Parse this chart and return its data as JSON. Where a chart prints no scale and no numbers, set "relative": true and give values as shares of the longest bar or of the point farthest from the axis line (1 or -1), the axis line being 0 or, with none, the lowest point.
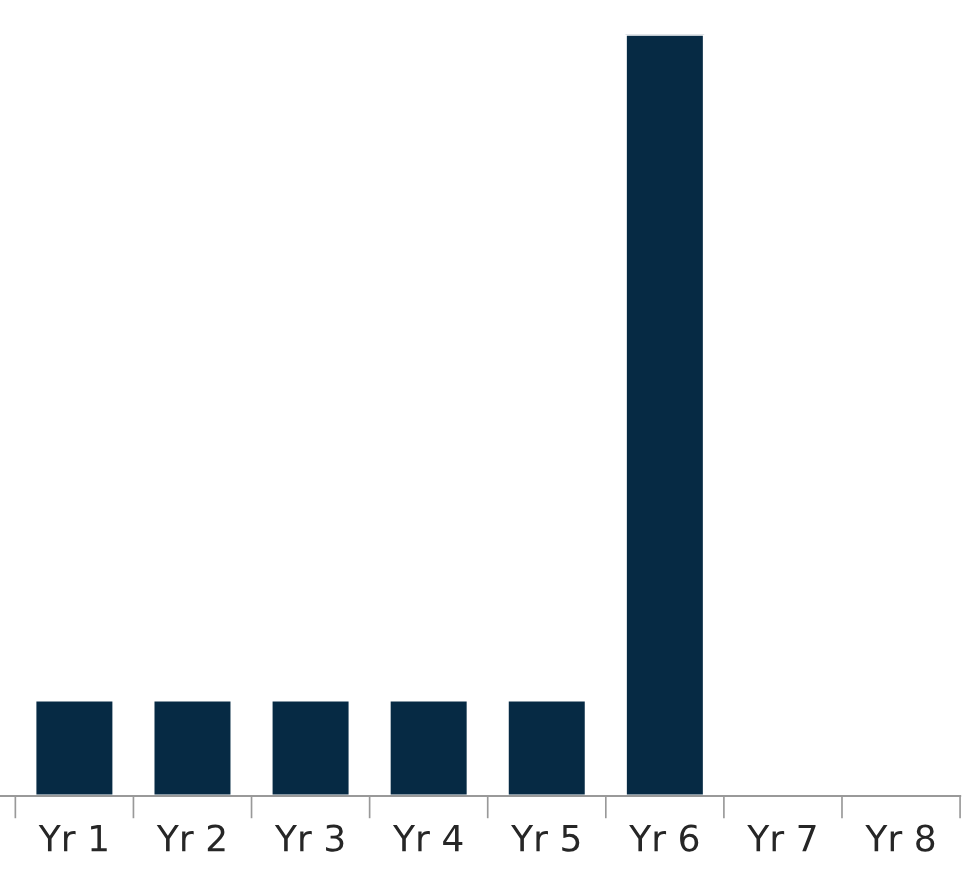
{
  "chart_data": {
    "type": "bar",
    "relative": true,
    "categories": [
      "Yr 1",
      "Yr 2",
      "Yr 3",
      "Yr 4",
      "Yr 5",
      "Yr 6",
      "Yr 7",
      "Yr 8"
    ],
    "values": [
      0.126,
      0.126,
      0.126,
      0.126,
      0.126,
      1,
      null,
      null
    ],
    "color": "#062a44",
    "grid": false,
    "legend": false
  }
}
